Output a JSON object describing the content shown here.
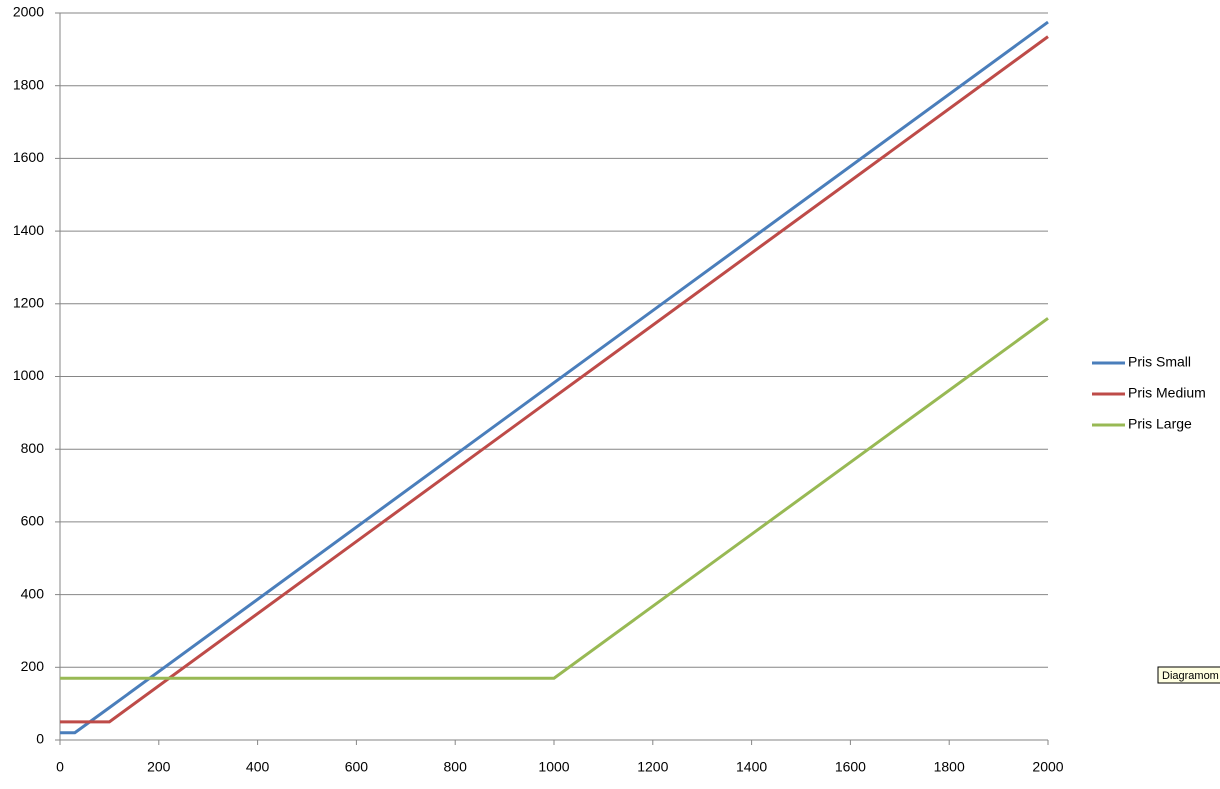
{
  "chart_data": {
    "type": "line",
    "x": [
      0,
      30,
      100,
      1000,
      2000
    ],
    "series": [
      {
        "name": "Pris Small",
        "color": "#4a7ebb",
        "values": [
          20,
          20,
          89,
          983,
          1975
        ]
      },
      {
        "name": "Pris Medium",
        "color": "#be4b48",
        "values": [
          50,
          50,
          50,
          943,
          1935
        ]
      },
      {
        "name": "Pris Large",
        "color": "#98b954",
        "values": [
          170,
          170,
          170,
          170,
          1160
        ]
      }
    ],
    "xlim": [
      0,
      2000
    ],
    "xticks": [
      0,
      200,
      400,
      600,
      800,
      1000,
      1200,
      1400,
      1600,
      1800,
      2000
    ],
    "ylim": [
      0,
      2000
    ],
    "yticks": [
      0,
      200,
      400,
      600,
      800,
      1000,
      1200,
      1400,
      1600,
      1800,
      2000
    ],
    "grid": true,
    "legend": "right",
    "annotation": "Diagramom"
  }
}
